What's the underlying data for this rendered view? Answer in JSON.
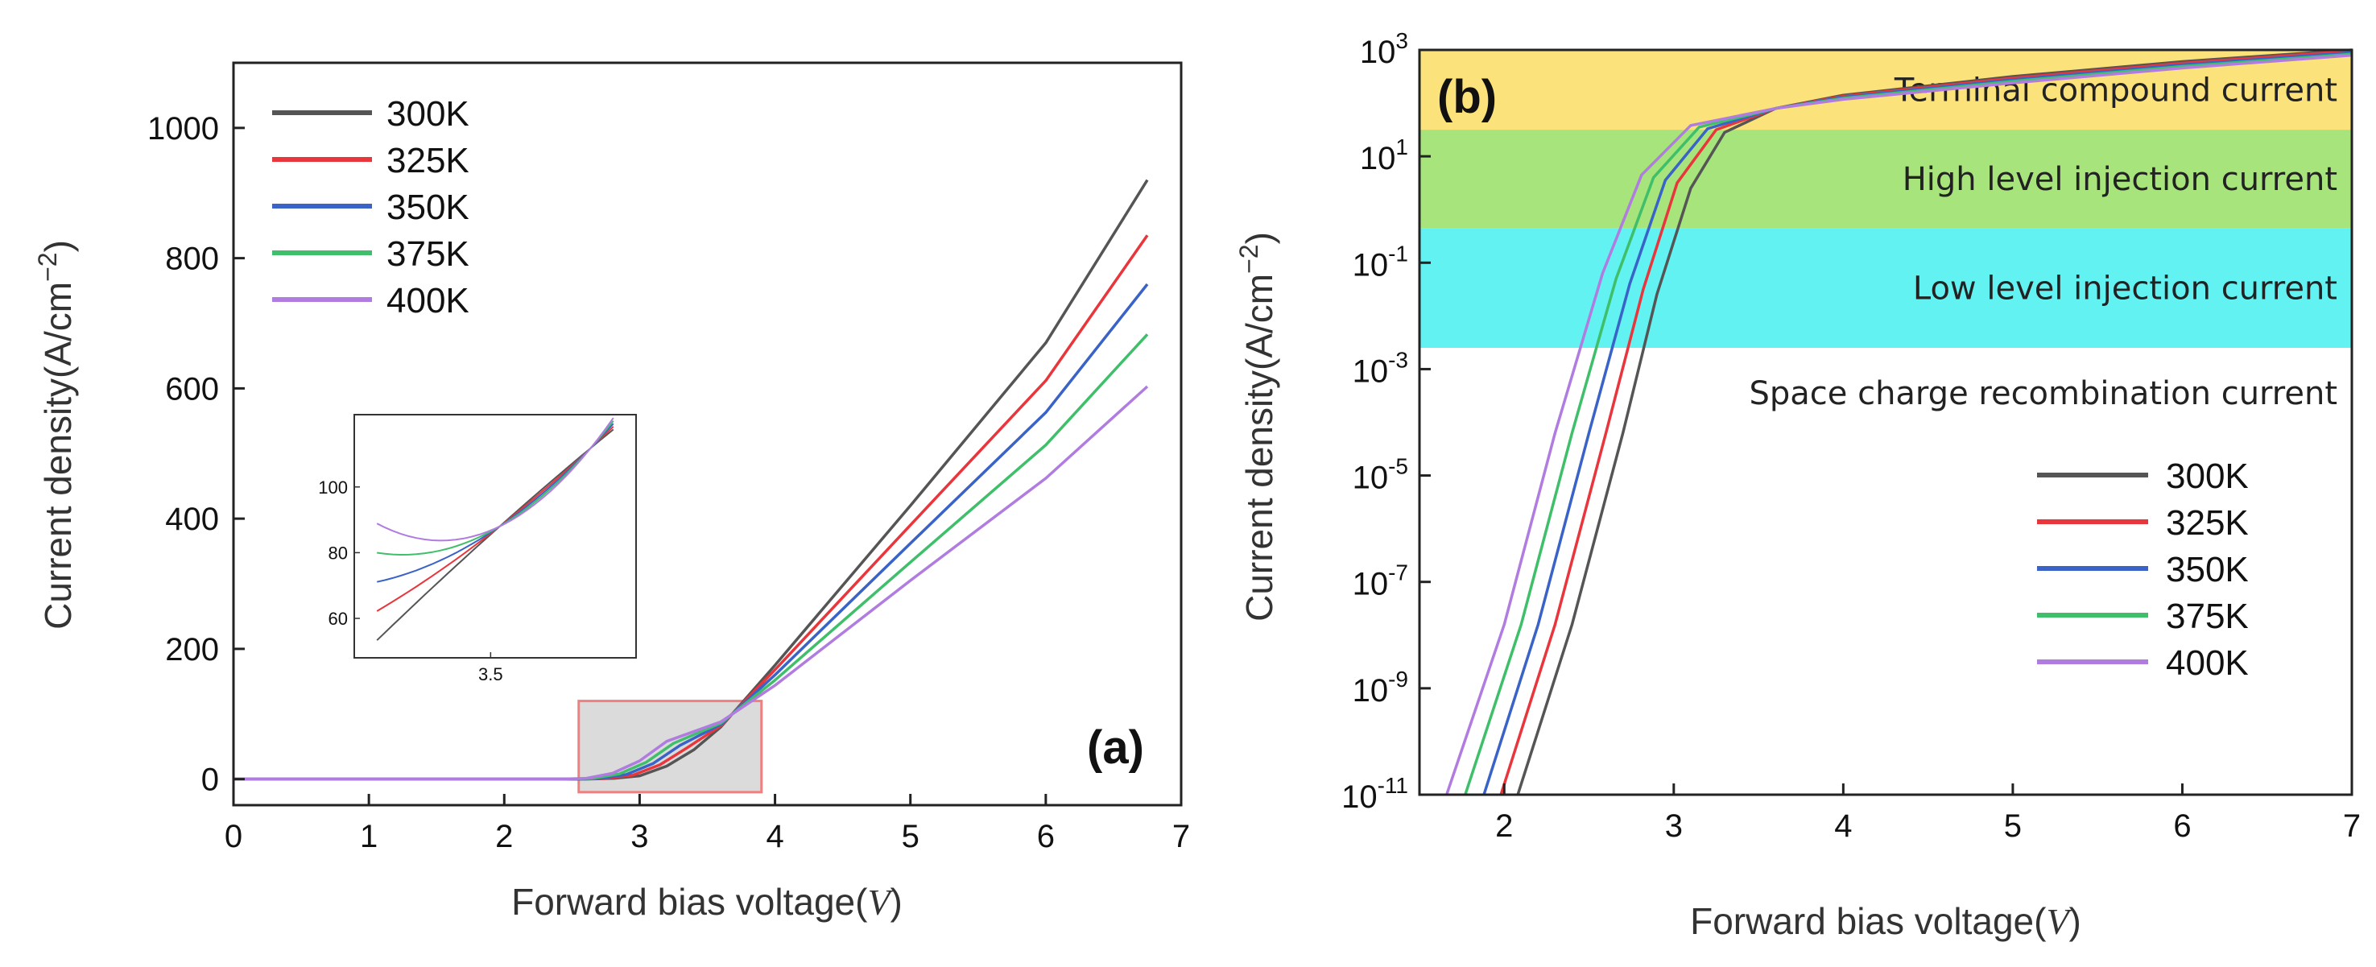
{
  "chart_data": [
    {
      "type": "line",
      "panel_label": "(a)",
      "xlabel": "Forward bias voltage(V)",
      "xlabel_main": "Forward bias voltage(",
      "xlabel_var": "V",
      "xlabel_close": ")",
      "ylabel": "Current density(A/cm⁻²)",
      "ylabel_main": "Current density(A/cm",
      "ylabel_sup": "−2",
      "ylabel_close": ")",
      "xlim": [
        0,
        7
      ],
      "ylim": [
        -40,
        1100
      ],
      "xticks": [
        0,
        1,
        2,
        3,
        4,
        5,
        6,
        7
      ],
      "xtick_labels": [
        "0",
        "1",
        "2",
        "3",
        "4",
        "5",
        "6",
        "7"
      ],
      "yticks": [
        0,
        200,
        400,
        600,
        800,
        1000
      ],
      "ytick_labels": [
        "0",
        "200",
        "400",
        "600",
        "800",
        "1000"
      ],
      "legend": [
        "300K",
        "325K",
        "350K",
        "375K",
        "400K"
      ],
      "legend_position": "top-left",
      "highlight_box": {
        "x": [
          2.55,
          3.9
        ],
        "y": [
          -20,
          120
        ]
      },
      "series": [
        {
          "name": "300K",
          "color": "#555555",
          "x": [
            0,
            2.6,
            2.8,
            3.0,
            3.2,
            3.4,
            3.6,
            4.0,
            5.0,
            6.0,
            6.75
          ],
          "y": [
            0,
            0,
            1,
            5,
            20,
            45,
            80,
            175,
            420,
            670,
            920
          ]
        },
        {
          "name": "325K",
          "color": "#e8363c",
          "x": [
            0,
            2.55,
            2.75,
            2.95,
            3.15,
            3.35,
            3.6,
            4.0,
            5.0,
            6.0,
            6.75
          ],
          "y": [
            0,
            0,
            1,
            6,
            22,
            48,
            82,
            168,
            390,
            612,
            835
          ]
        },
        {
          "name": "350K",
          "color": "#3a63c8",
          "x": [
            0,
            2.5,
            2.7,
            2.9,
            3.1,
            3.3,
            3.6,
            4.0,
            5.0,
            6.0,
            6.75
          ],
          "y": [
            0,
            0,
            1,
            7,
            24,
            52,
            84,
            160,
            362,
            563,
            760
          ]
        },
        {
          "name": "375K",
          "color": "#3fbf6a",
          "x": [
            0,
            2.45,
            2.65,
            2.85,
            3.05,
            3.25,
            3.6,
            4.0,
            5.0,
            6.0,
            6.75
          ],
          "y": [
            0,
            0,
            1,
            8,
            26,
            55,
            86,
            152,
            333,
            513,
            683
          ]
        },
        {
          "name": "400K",
          "color": "#b07ce0",
          "x": [
            0,
            2.4,
            2.6,
            2.8,
            3.0,
            3.2,
            3.6,
            4.0,
            5.0,
            6.0,
            6.75
          ],
          "y": [
            0,
            0,
            1,
            9,
            28,
            58,
            88,
            144,
            305,
            462,
            603
          ]
        }
      ],
      "inset": {
        "xlim": [
          3.2,
          3.82
        ],
        "ylim": [
          48,
          122
        ],
        "xticks": [
          3.5
        ],
        "xtick_labels": [
          "3.5"
        ],
        "yticks": [
          60,
          80,
          100
        ],
        "ytick_labels": [
          "60",
          "80",
          "100"
        ],
        "crossing": {
          "x": 3.52,
          "y": 88
        }
      }
    },
    {
      "type": "line",
      "panel_label": "(b)",
      "yscale": "log",
      "xlabel": "Forward bias voltage(V)",
      "xlabel_main": "Forward bias voltage(",
      "xlabel_var": "V",
      "xlabel_close": ")",
      "ylabel": "Current density(A/cm⁻²)",
      "ylabel_main": "Current density(A/cm",
      "ylabel_sup": "−2",
      "ylabel_close": ")",
      "xlim": [
        1.5,
        7
      ],
      "ylim_exp": [
        -11,
        3
      ],
      "xticks": [
        2,
        3,
        4,
        5,
        6,
        7
      ],
      "xtick_labels": [
        "2",
        "3",
        "4",
        "5",
        "6",
        "7"
      ],
      "ytick_exponents": [
        3,
        1,
        -1,
        -3,
        -5,
        -7,
        -9,
        -11
      ],
      "ytick_base": "10",
      "ytick_exp_labels": [
        "3",
        "1",
        "-1",
        "-3",
        "-5",
        "-7",
        "-9",
        "-11"
      ],
      "regions": [
        {
          "label": "Terminal compound current",
          "color": "#fbe27a",
          "from_exp": 1.5,
          "to_exp": 3
        },
        {
          "label": "High level injection current",
          "color": "#a8e47c",
          "from_exp": -0.35,
          "to_exp": 1.5
        },
        {
          "label": "Low level injection current",
          "color": "#63f2f2",
          "from_exp": -2.6,
          "to_exp": -0.35
        },
        {
          "label": "Space charge recombination current",
          "color": "#ffffff",
          "from_exp": -11,
          "to_exp": -2.6
        }
      ],
      "legend": [
        "300K",
        "325K",
        "350K",
        "375K",
        "400K"
      ],
      "legend_position": "lower-right",
      "series": [
        {
          "name": "300K",
          "color": "#555555",
          "x": [
            2.08,
            2.4,
            2.7,
            2.9,
            3.1,
            3.3,
            3.6,
            4.0,
            5.0,
            6.0,
            7.0
          ],
          "y_exp": [
            -11,
            -7.8,
            -4.2,
            -1.6,
            0.4,
            1.45,
            1.9,
            2.15,
            2.5,
            2.78,
            3.0
          ]
        },
        {
          "name": "325K",
          "color": "#e8363c",
          "x": [
            1.98,
            2.3,
            2.6,
            2.82,
            3.02,
            3.25,
            3.6,
            4.0,
            5.0,
            6.0,
            7.0
          ],
          "y_exp": [
            -11,
            -7.8,
            -4.2,
            -1.5,
            0.5,
            1.5,
            1.9,
            2.13,
            2.47,
            2.75,
            2.98
          ]
        },
        {
          "name": "350K",
          "color": "#3a63c8",
          "x": [
            1.88,
            2.2,
            2.5,
            2.74,
            2.95,
            3.2,
            3.6,
            4.0,
            5.0,
            6.0,
            7.0
          ],
          "y_exp": [
            -11,
            -7.8,
            -4.2,
            -1.4,
            0.55,
            1.52,
            1.9,
            2.11,
            2.44,
            2.72,
            2.95
          ]
        },
        {
          "name": "375K",
          "color": "#3fbf6a",
          "x": [
            1.77,
            2.1,
            2.4,
            2.66,
            2.88,
            3.15,
            3.6,
            4.0,
            5.0,
            6.0,
            7.0
          ],
          "y_exp": [
            -11,
            -7.8,
            -4.2,
            -1.3,
            0.6,
            1.55,
            1.9,
            2.09,
            2.41,
            2.69,
            2.92
          ]
        },
        {
          "name": "400K",
          "color": "#b07ce0",
          "x": [
            1.66,
            2.0,
            2.3,
            2.58,
            2.81,
            3.1,
            3.6,
            4.0,
            5.0,
            6.0,
            7.0
          ],
          "y_exp": [
            -11,
            -7.8,
            -4.2,
            -1.2,
            0.65,
            1.58,
            1.9,
            2.07,
            2.38,
            2.66,
            2.9
          ]
        }
      ]
    }
  ]
}
